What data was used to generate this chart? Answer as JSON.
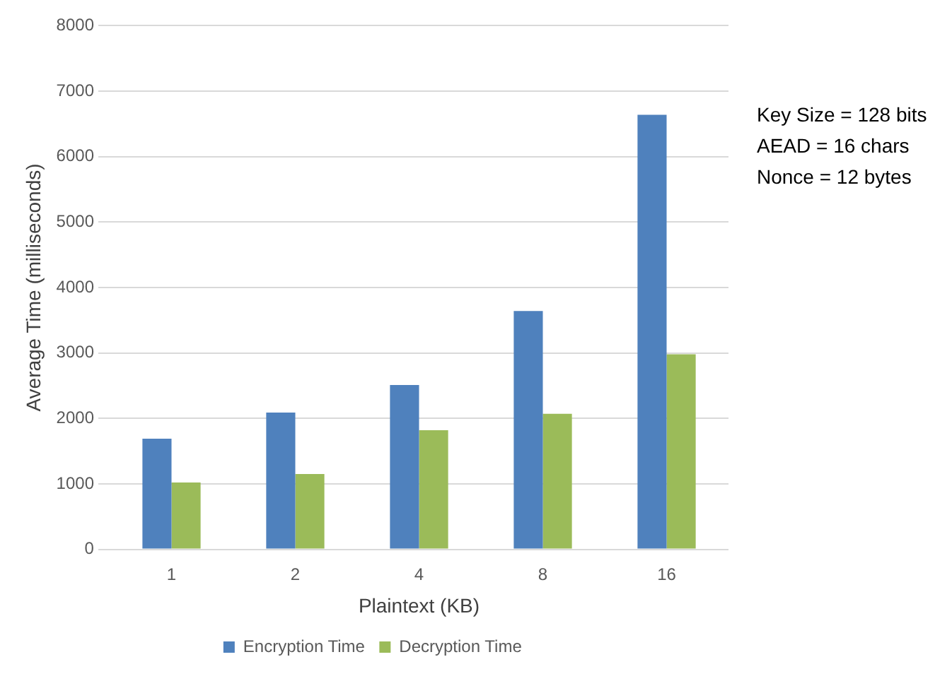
{
  "chart_data": {
    "type": "bar",
    "xlabel": "Plaintext (KB)",
    "ylabel": "Average Time (milliseconds)",
    "categories": [
      "1",
      "2",
      "4",
      "8",
      "16"
    ],
    "series": [
      {
        "name": "Encryption Time",
        "color": "#4f81bd",
        "values": [
          1690,
          2090,
          2510,
          3640,
          6640
        ]
      },
      {
        "name": "Decryption Time",
        "color": "#9bbb59",
        "values": [
          1020,
          1150,
          1820,
          2070,
          2980
        ]
      }
    ],
    "ylim": [
      0,
      8000
    ],
    "yticks": [
      0,
      1000,
      2000,
      3000,
      4000,
      5000,
      6000,
      7000,
      8000
    ],
    "grid": "y",
    "legend": "bottom",
    "annotations": [
      "Key Size = 128 bits",
      "AEAD = 16 chars",
      "Nonce = 12 bytes"
    ]
  }
}
